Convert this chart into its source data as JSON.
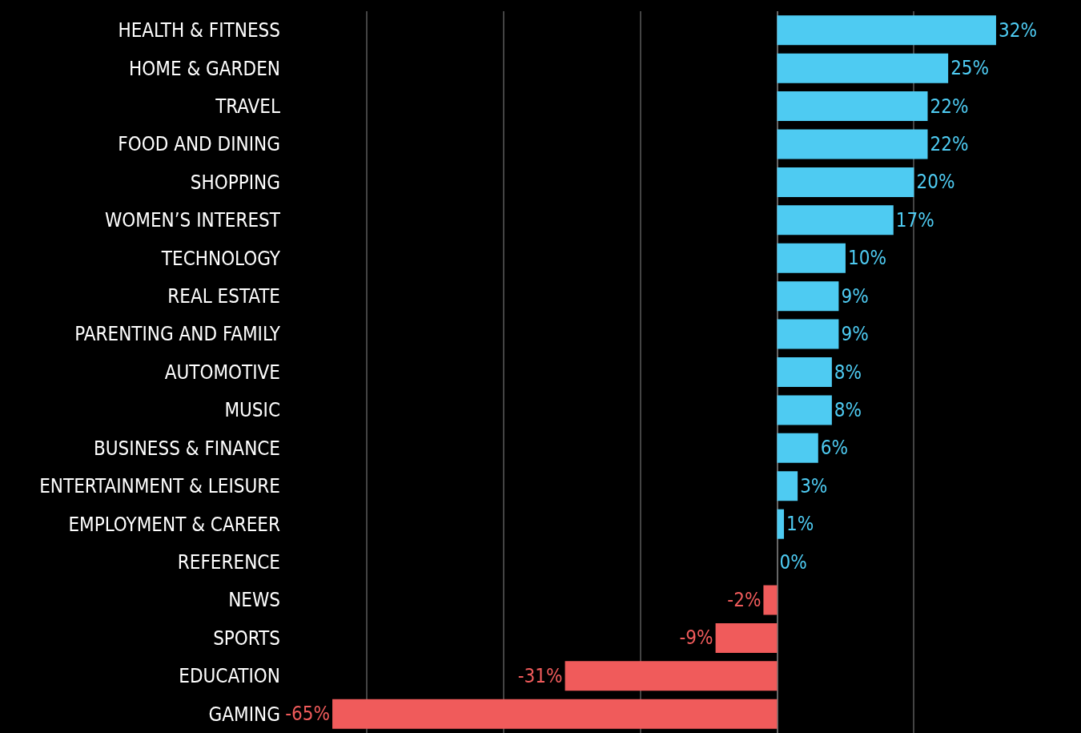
{
  "chart_data": {
    "type": "bar",
    "orientation": "horizontal",
    "categories": [
      "HEALTH & FITNESS",
      "HOME & GARDEN",
      "TRAVEL",
      "FOOD AND DINING",
      "SHOPPING",
      "WOMEN’S INTEREST",
      "TECHNOLOGY",
      "REAL ESTATE",
      "PARENTING AND FAMILY",
      "AUTOMOTIVE",
      "MUSIC",
      "BUSINESS & FINANCE",
      "ENTERTAINMENT & LEISURE",
      "EMPLOYMENT & CAREER",
      "REFERENCE",
      "NEWS",
      "SPORTS",
      "EDUCATION",
      "GAMING"
    ],
    "values": [
      32,
      25,
      22,
      22,
      20,
      17,
      10,
      9,
      9,
      8,
      8,
      6,
      3,
      1,
      0,
      -2,
      -9,
      -31,
      -65
    ],
    "colors": [
      "#4ecbf2",
      "#4ecbf2",
      "#4ecbf2",
      "#4ecbf2",
      "#4ecbf2",
      "#4ecbf2",
      "#4ecbf2",
      "#4ecbf2",
      "#4ecbf2",
      "#4ecbf2",
      "#4ecbf2",
      "#4ecbf2",
      "#4ecbf2",
      "#4ecbf2",
      "#4ecbf2",
      "#f05b5b",
      "#f05b5b",
      "#f05b5b",
      "#f05b5b"
    ],
    "value_labels": [
      "32%",
      "25%",
      "22%",
      "22%",
      "20%",
      "17%",
      "10%",
      "9%",
      "9%",
      "8%",
      "8%",
      "6%",
      "3%",
      "1%",
      "0%",
      "-2%",
      "-9%",
      "-31%",
      "-65%"
    ],
    "grid": "x",
    "tick_labels": "y"
  }
}
